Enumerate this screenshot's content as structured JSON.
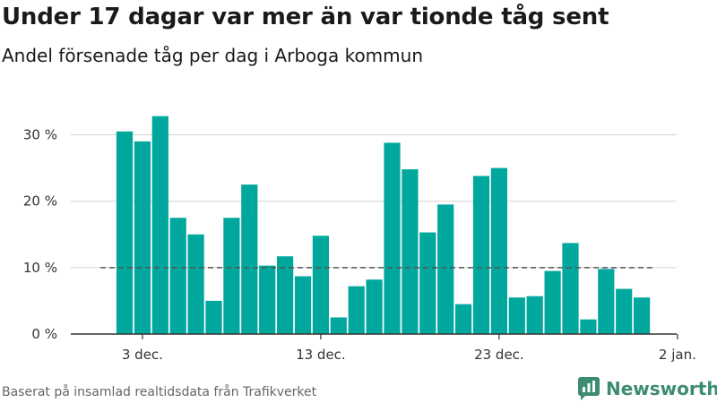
{
  "title": "Under 17 dagar var mer än var tionde tåg sent",
  "subtitle": "Andel försenade tåg per dag i Arboga kommun",
  "source": "Baserat på insamlad realtidsdata från Trafikverket",
  "brand": {
    "name": "Newsworthy",
    "color": "#3c8c73"
  },
  "colors": {
    "bar": "#00a79d",
    "reference": "#555555",
    "grid": "#d9d9d9"
  },
  "chart_data": {
    "type": "bar",
    "x": [
      "2020-12-02",
      "2020-12-03",
      "2020-12-04",
      "2020-12-05",
      "2020-12-06",
      "2020-12-07",
      "2020-12-08",
      "2020-12-09",
      "2020-12-10",
      "2020-12-11",
      "2020-12-12",
      "2020-12-13",
      "2020-12-14",
      "2020-12-15",
      "2020-12-16",
      "2020-12-17",
      "2020-12-18",
      "2020-12-19",
      "2020-12-20",
      "2020-12-21",
      "2020-12-22",
      "2020-12-23",
      "2020-12-24",
      "2020-12-25",
      "2020-12-26",
      "2020-12-27",
      "2020-12-28",
      "2020-12-29",
      "2020-12-30",
      "2020-12-31"
    ],
    "values": [
      30.5,
      29.0,
      32.8,
      17.5,
      15.0,
      5.0,
      17.5,
      22.5,
      10.3,
      11.7,
      8.7,
      14.8,
      2.5,
      7.2,
      8.2,
      28.8,
      24.8,
      15.3,
      19.5,
      4.5,
      23.8,
      25.0,
      5.5,
      5.7,
      9.5,
      13.7,
      2.2,
      9.8,
      6.8,
      5.5
    ],
    "xticks": [
      {
        "date": "2020-12-03",
        "label": "3 dec."
      },
      {
        "date": "2020-12-13",
        "label": "13 dec."
      },
      {
        "date": "2020-12-23",
        "label": "23 dec."
      },
      {
        "date": "2021-01-02",
        "label": "2 jan."
      }
    ],
    "yticks": [
      {
        "value": 0,
        "label": "0 %"
      },
      {
        "value": 10,
        "label": "10 %"
      },
      {
        "value": 20,
        "label": "20 %"
      },
      {
        "value": 30,
        "label": "30 %"
      }
    ],
    "ylim": [
      0,
      35
    ],
    "reference_line": 10,
    "grid": true
  }
}
